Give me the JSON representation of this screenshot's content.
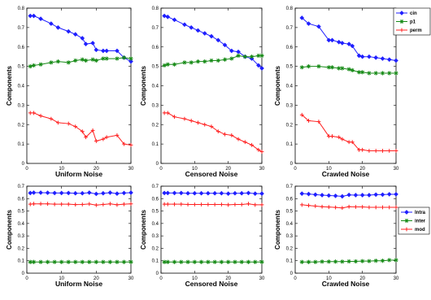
{
  "colors": {
    "blue": "#1f1fff",
    "green": "#168a16",
    "red": "#ff2020"
  },
  "chart_data": [
    {
      "type": "line",
      "xlabel": "Uniform Noise",
      "ylabel": "Components",
      "xlim": [
        0,
        30
      ],
      "ylim": [
        0,
        0.8
      ],
      "xticks": [
        "0",
        "10",
        "20",
        "30"
      ],
      "yticks": [
        "0",
        "0.1",
        "0.2",
        "0.3",
        "0.4",
        "0.5",
        "0.6",
        "0.7",
        "0.8"
      ],
      "x": [
        1,
        2,
        4,
        7,
        9,
        12,
        14,
        16,
        17,
        19,
        20,
        22,
        23,
        26,
        28,
        30
      ],
      "legend": null,
      "series": [
        {
          "name": "cin",
          "color": "blue",
          "marker": "diamond",
          "values": [
            0.76,
            0.76,
            0.745,
            0.72,
            0.7,
            0.68,
            0.665,
            0.645,
            0.615,
            0.62,
            0.585,
            0.58,
            0.58,
            0.58,
            0.545,
            0.525
          ]
        },
        {
          "name": "p1",
          "color": "green",
          "marker": "star",
          "values": [
            0.5,
            0.505,
            0.51,
            0.52,
            0.525,
            0.52,
            0.53,
            0.535,
            0.53,
            0.535,
            0.53,
            0.54,
            0.54,
            0.54,
            0.545,
            0.54
          ]
        },
        {
          "name": "perm",
          "color": "red",
          "marker": "plus",
          "values": [
            0.26,
            0.26,
            0.245,
            0.23,
            0.21,
            0.205,
            0.19,
            0.165,
            0.135,
            0.17,
            0.115,
            0.125,
            0.135,
            0.145,
            0.1,
            0.095
          ]
        }
      ]
    },
    {
      "type": "line",
      "xlabel": "Censored Noise",
      "ylabel": "Components",
      "xlim": [
        0,
        30
      ],
      "ylim": [
        0,
        0.8
      ],
      "xticks": [
        "0",
        "10",
        "20",
        "30"
      ],
      "yticks": [
        "0",
        "0.1",
        "0.2",
        "0.3",
        "0.4",
        "0.5",
        "0.6",
        "0.7",
        "0.8"
      ],
      "x": [
        1,
        2,
        4,
        7,
        9,
        11,
        13,
        15,
        17,
        19,
        21,
        23,
        25,
        27,
        29,
        30
      ],
      "legend": null,
      "series": [
        {
          "name": "cin",
          "color": "blue",
          "marker": "diamond",
          "values": [
            0.76,
            0.755,
            0.74,
            0.715,
            0.7,
            0.685,
            0.67,
            0.655,
            0.635,
            0.61,
            0.58,
            0.575,
            0.55,
            0.54,
            0.505,
            0.49
          ]
        },
        {
          "name": "p1",
          "color": "green",
          "marker": "star",
          "values": [
            0.505,
            0.51,
            0.51,
            0.52,
            0.52,
            0.525,
            0.525,
            0.53,
            0.53,
            0.535,
            0.54,
            0.555,
            0.55,
            0.55,
            0.555,
            0.555
          ]
        },
        {
          "name": "perm",
          "color": "red",
          "marker": "plus",
          "values": [
            0.26,
            0.26,
            0.24,
            0.23,
            0.22,
            0.21,
            0.2,
            0.19,
            0.165,
            0.15,
            0.145,
            0.125,
            0.11,
            0.095,
            0.07,
            0.06
          ]
        }
      ]
    },
    {
      "type": "line",
      "xlabel": "Crawled Noise",
      "ylabel": "Components",
      "xlim": [
        0,
        30
      ],
      "ylim": [
        0,
        0.8
      ],
      "xticks": [
        "0",
        "10",
        "20",
        "30"
      ],
      "yticks": [
        "0",
        "0.1",
        "0.2",
        "0.3",
        "0.4",
        "0.5",
        "0.6",
        "0.7",
        "0.8"
      ],
      "x": [
        2,
        4,
        7,
        10,
        11,
        13,
        14,
        16,
        17,
        19,
        20,
        22,
        24,
        26,
        28,
        30
      ],
      "legend": "top-right",
      "series": [
        {
          "name": "cin",
          "color": "blue",
          "marker": "diamond",
          "values": [
            0.75,
            0.72,
            0.705,
            0.635,
            0.635,
            0.625,
            0.62,
            0.615,
            0.605,
            0.555,
            0.55,
            0.55,
            0.545,
            0.54,
            0.535,
            0.53
          ]
        },
        {
          "name": "p1",
          "color": "green",
          "marker": "star",
          "values": [
            0.495,
            0.5,
            0.5,
            0.495,
            0.495,
            0.49,
            0.49,
            0.485,
            0.48,
            0.47,
            0.47,
            0.465,
            0.465,
            0.465,
            0.465,
            0.465
          ]
        },
        {
          "name": "perm",
          "color": "red",
          "marker": "plus",
          "values": [
            0.25,
            0.22,
            0.215,
            0.14,
            0.14,
            0.135,
            0.125,
            0.11,
            0.11,
            0.07,
            0.07,
            0.065,
            0.065,
            0.065,
            0.065,
            0.065
          ]
        }
      ]
    },
    {
      "type": "line",
      "xlabel": "Uniform Noise",
      "ylabel": "Components",
      "xlim": [
        0,
        30
      ],
      "ylim": [
        0,
        0.7
      ],
      "xticks": [
        "0",
        "10",
        "20",
        "30"
      ],
      "yticks": [
        "0",
        "0.1",
        "0.2",
        "0.3",
        "0.4",
        "0.5",
        "0.6",
        "0.7"
      ],
      "x": [
        1,
        2,
        4,
        6,
        8,
        10,
        12,
        14,
        16,
        18,
        20,
        22,
        24,
        26,
        28,
        30
      ],
      "legend": null,
      "series": [
        {
          "name": "intra",
          "color": "blue",
          "marker": "diamond",
          "values": [
            0.645,
            0.648,
            0.648,
            0.647,
            0.645,
            0.645,
            0.645,
            0.643,
            0.643,
            0.648,
            0.638,
            0.643,
            0.648,
            0.64,
            0.645,
            0.648
          ]
        },
        {
          "name": "inter",
          "color": "green",
          "marker": "star",
          "values": [
            0.09,
            0.09,
            0.09,
            0.09,
            0.09,
            0.09,
            0.09,
            0.09,
            0.09,
            0.09,
            0.09,
            0.09,
            0.09,
            0.09,
            0.09,
            0.09
          ]
        },
        {
          "name": "mod",
          "color": "red",
          "marker": "plus",
          "values": [
            0.555,
            0.558,
            0.558,
            0.558,
            0.555,
            0.555,
            0.555,
            0.552,
            0.553,
            0.557,
            0.548,
            0.553,
            0.558,
            0.55,
            0.555,
            0.558
          ]
        }
      ]
    },
    {
      "type": "line",
      "xlabel": "Censored Noise",
      "ylabel": "Components",
      "xlim": [
        0,
        30
      ],
      "ylim": [
        0,
        0.7
      ],
      "xticks": [
        "0",
        "10",
        "20",
        "30"
      ],
      "yticks": [
        "0",
        "0.1",
        "0.2",
        "0.3",
        "0.4",
        "0.5",
        "0.6",
        "0.7"
      ],
      "x": [
        1,
        2,
        4,
        6,
        8,
        10,
        12,
        14,
        16,
        18,
        20,
        22,
        24,
        26,
        28,
        30
      ],
      "legend": null,
      "series": [
        {
          "name": "intra",
          "color": "blue",
          "marker": "diamond",
          "values": [
            0.645,
            0.645,
            0.645,
            0.645,
            0.643,
            0.643,
            0.643,
            0.643,
            0.643,
            0.643,
            0.64,
            0.643,
            0.643,
            0.645,
            0.64,
            0.64
          ]
        },
        {
          "name": "inter",
          "color": "green",
          "marker": "star",
          "values": [
            0.09,
            0.09,
            0.09,
            0.09,
            0.09,
            0.09,
            0.09,
            0.09,
            0.09,
            0.09,
            0.09,
            0.09,
            0.09,
            0.09,
            0.09,
            0.09
          ]
        },
        {
          "name": "mod",
          "color": "red",
          "marker": "plus",
          "values": [
            0.555,
            0.555,
            0.555,
            0.555,
            0.553,
            0.553,
            0.553,
            0.553,
            0.553,
            0.553,
            0.55,
            0.553,
            0.553,
            0.558,
            0.55,
            0.55
          ]
        }
      ]
    },
    {
      "type": "line",
      "xlabel": "Crawled Noise",
      "ylabel": "Components",
      "xlim": [
        0,
        30
      ],
      "ylim": [
        0,
        0.7
      ],
      "xticks": [
        "0",
        "10",
        "20",
        "30"
      ],
      "yticks": [
        "0",
        "0.1",
        "0.2",
        "0.3",
        "0.4",
        "0.5",
        "0.6",
        "0.7"
      ],
      "x": [
        2,
        4,
        6,
        8,
        10,
        12,
        14,
        16,
        18,
        20,
        22,
        24,
        26,
        28,
        30
      ],
      "legend": "top-right",
      "series": [
        {
          "name": "Intra",
          "color": "blue",
          "marker": "diamond",
          "values": [
            0.64,
            0.637,
            0.632,
            0.628,
            0.625,
            0.622,
            0.618,
            0.63,
            0.628,
            0.628,
            0.628,
            0.632,
            0.632,
            0.635,
            0.635
          ]
        },
        {
          "name": "inter",
          "color": "green",
          "marker": "star",
          "values": [
            0.09,
            0.09,
            0.09,
            0.093,
            0.093,
            0.093,
            0.093,
            0.095,
            0.095,
            0.097,
            0.097,
            0.1,
            0.1,
            0.105,
            0.105
          ]
        },
        {
          "name": "mod",
          "color": "red",
          "marker": "plus",
          "values": [
            0.55,
            0.545,
            0.54,
            0.535,
            0.532,
            0.529,
            0.525,
            0.535,
            0.533,
            0.533,
            0.53,
            0.53,
            0.53,
            0.53,
            0.53
          ]
        }
      ]
    }
  ]
}
